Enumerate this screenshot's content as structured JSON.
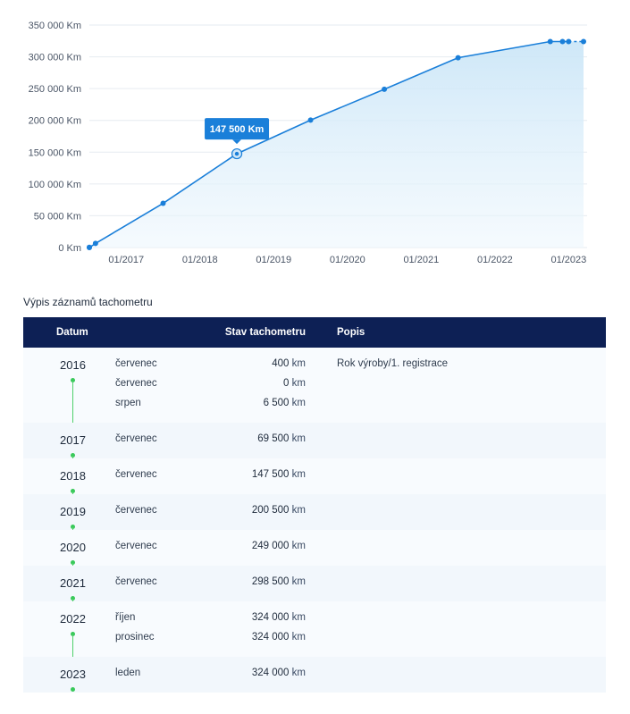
{
  "chart_data": {
    "type": "area",
    "x_ticks": [
      "01/2017",
      "01/2018",
      "01/2019",
      "01/2020",
      "01/2021",
      "01/2022",
      "01/2023"
    ],
    "y_ticks": [
      "350 000 Km",
      "300 000 Km",
      "250 000 Km",
      "200 000 Km",
      "150 000 Km",
      "100 000 Km",
      "50 000 Km",
      "0 Km"
    ],
    "ylim": [
      0,
      350000
    ],
    "xlim": [
      "2016-07",
      "2023-04"
    ],
    "points": [
      {
        "date": "2016-07",
        "value": 400
      },
      {
        "date": "2016-07",
        "value": 0
      },
      {
        "date": "2016-08",
        "value": 6500
      },
      {
        "date": "2017-07",
        "value": 69500
      },
      {
        "date": "2018-07",
        "value": 147500
      },
      {
        "date": "2019-07",
        "value": 200500
      },
      {
        "date": "2020-07",
        "value": 249000
      },
      {
        "date": "2021-07",
        "value": 298500
      },
      {
        "date": "2022-10",
        "value": 324000
      },
      {
        "date": "2022-12",
        "value": 324000
      },
      {
        "date": "2023-01",
        "value": 324000
      }
    ],
    "tooltip": {
      "date": "2018-07",
      "label": "147 500 Km"
    },
    "grid": true,
    "line_color": "#1a7fd9"
  },
  "section_title": "Výpis záznamů tachometru",
  "table": {
    "headers": {
      "date": "Datum",
      "odometer": "Stav tachometru",
      "description": "Popis"
    },
    "groups": [
      {
        "year": "2016",
        "entries": [
          {
            "month": "červenec",
            "value": "400",
            "unit": "km",
            "desc": "Rok výroby/1. registrace"
          },
          {
            "month": "červenec",
            "value": "0",
            "unit": "km",
            "desc": ""
          },
          {
            "month": "srpen",
            "value": "6 500",
            "unit": "km",
            "desc": ""
          }
        ]
      },
      {
        "year": "2017",
        "entries": [
          {
            "month": "červenec",
            "value": "69 500",
            "unit": "km",
            "desc": ""
          }
        ]
      },
      {
        "year": "2018",
        "entries": [
          {
            "month": "červenec",
            "value": "147 500",
            "unit": "km",
            "desc": ""
          }
        ]
      },
      {
        "year": "2019",
        "entries": [
          {
            "month": "červenec",
            "value": "200 500",
            "unit": "km",
            "desc": ""
          }
        ]
      },
      {
        "year": "2020",
        "entries": [
          {
            "month": "červenec",
            "value": "249 000",
            "unit": "km",
            "desc": ""
          }
        ]
      },
      {
        "year": "2021",
        "entries": [
          {
            "month": "červenec",
            "value": "298 500",
            "unit": "km",
            "desc": ""
          }
        ]
      },
      {
        "year": "2022",
        "entries": [
          {
            "month": "říjen",
            "value": "324 000",
            "unit": "km",
            "desc": ""
          },
          {
            "month": "prosinec",
            "value": "324 000",
            "unit": "km",
            "desc": ""
          }
        ]
      },
      {
        "year": "2023",
        "entries": [
          {
            "month": "leden",
            "value": "324 000",
            "unit": "km",
            "desc": ""
          }
        ]
      }
    ]
  }
}
